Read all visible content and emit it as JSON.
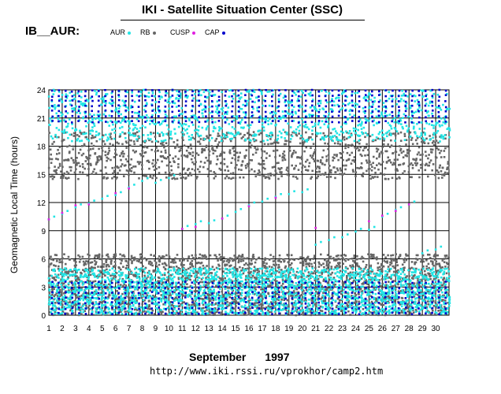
{
  "header": {
    "title": "IKI - Satellite Situation Center (SSC)",
    "subtitle": "IB__AUR:"
  },
  "legend": [
    {
      "name": "AUR",
      "color": "#22e5e5"
    },
    {
      "name": "RB",
      "color": "#666666"
    },
    {
      "name": "CUSP",
      "color": "#e020e0"
    },
    {
      "name": "CAP",
      "color": "#0000cc"
    }
  ],
  "footer": {
    "month": "September",
    "year": "1997",
    "url": "http://www.iki.rssi.ru/vprokhor/camp2.htm"
  },
  "chart_data": {
    "type": "scatter",
    "title": "IKI - Satellite Situation Center (SSC)",
    "xlabel": "",
    "ylabel": "Geomagnetic  Local  Time  (hours)",
    "x_ticks": [
      "1",
      "2",
      "3",
      "4",
      "5",
      "6",
      "7",
      "8",
      "9",
      "10",
      "11",
      "12",
      "13",
      "14",
      "15",
      "16",
      "17",
      "18",
      "19",
      "20",
      "21",
      "22",
      "23",
      "24",
      "25",
      "26",
      "27",
      "28",
      "29",
      "30"
    ],
    "y_ticks": [
      "0",
      "3",
      "6",
      "9",
      "12",
      "15",
      "18",
      "21",
      "24"
    ],
    "xlim": [
      1,
      31
    ],
    "ylim": [
      0,
      24
    ],
    "grid": true,
    "series": [
      {
        "name": "AUR",
        "color": "#22e5e5",
        "bands": [
          [
            0.1,
            5.0
          ],
          [
            18.5,
            24.0
          ]
        ],
        "daily_sparse_points": [
          [
            1.0,
            10.2
          ],
          [
            2.0,
            10.8
          ],
          [
            3.0,
            11.5
          ],
          [
            4.0,
            11.9
          ],
          [
            5.0,
            12.4
          ],
          [
            6.0,
            12.8
          ],
          [
            7.0,
            13.6
          ],
          [
            8.0,
            14.3
          ],
          [
            9.0,
            14.1
          ],
          [
            10.0,
            14.6
          ],
          [
            11.0,
            9.2
          ],
          [
            12.0,
            9.7
          ],
          [
            13.0,
            9.8
          ],
          [
            14.0,
            10.3
          ],
          [
            15.0,
            11.0
          ],
          [
            16.0,
            11.7
          ],
          [
            17.0,
            12.1
          ],
          [
            18.0,
            12.6
          ],
          [
            19.0,
            12.9
          ],
          [
            20.0,
            13.1
          ],
          [
            21.0,
            7.5
          ],
          [
            22.0,
            8.0
          ],
          [
            23.0,
            8.3
          ],
          [
            24.0,
            8.9
          ],
          [
            25.0,
            9.1
          ],
          [
            26.0,
            10.5
          ],
          [
            27.0,
            11.2
          ],
          [
            28.0,
            11.8
          ],
          [
            29.0,
            6.6
          ],
          [
            30.0,
            7.0
          ]
        ]
      },
      {
        "name": "RB",
        "color": "#666666",
        "bands": [
          [
            0.0,
            6.5
          ],
          [
            14.5,
            19.5
          ]
        ]
      },
      {
        "name": "CUSP",
        "color": "#e020e0",
        "points": [
          [
            1.0,
            10.2
          ],
          [
            2.0,
            10.9
          ],
          [
            3.0,
            11.7
          ],
          [
            4.0,
            11.8
          ],
          [
            6.0,
            13.0
          ],
          [
            7.0,
            13.5
          ],
          [
            11.0,
            9.2
          ],
          [
            12.0,
            9.4
          ],
          [
            14.0,
            10.3
          ],
          [
            16.0,
            11.6
          ],
          [
            18.0,
            12.5
          ],
          [
            21.0,
            9.3
          ],
          [
            25.0,
            10.0
          ],
          [
            26.0,
            10.6
          ],
          [
            27.0,
            11.1
          ],
          [
            28.0,
            11.8
          ]
        ]
      },
      {
        "name": "CAP",
        "color": "#0000cc",
        "bands": [
          [
            0.1,
            3.5
          ],
          [
            20.5,
            24.0
          ]
        ]
      }
    ]
  }
}
